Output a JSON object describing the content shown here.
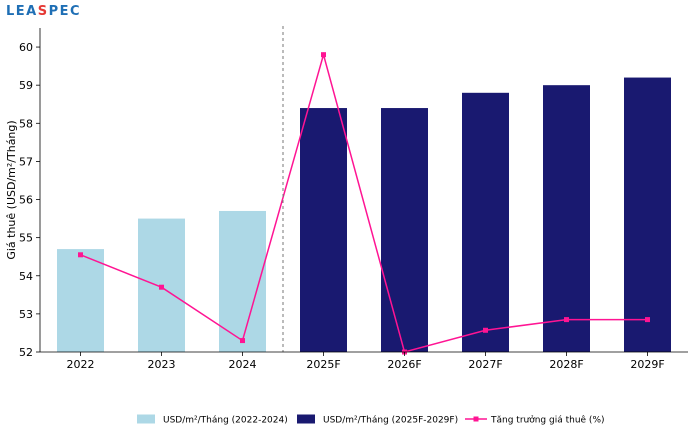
{
  "logo": {
    "text_left": "LEA",
    "text_s": "S",
    "text_right": "PEC"
  },
  "chart_data": {
    "type": "bar",
    "categories": [
      "2022",
      "2023",
      "2024",
      "2025F",
      "2026F",
      "2027F",
      "2028F",
      "2029F"
    ],
    "ylabel": "Giá thuê (USD/m²/Tháng)",
    "xlabel": "",
    "ylim": [
      52,
      60.5
    ],
    "yticks": [
      52,
      53,
      54,
      55,
      56,
      57,
      58,
      59,
      60
    ],
    "grid": false,
    "legend_position": "bottom",
    "series": [
      {
        "name": "USD/m²/Tháng (2022-2024)",
        "kind": "bar",
        "color": "#add8e6",
        "values": [
          54.7,
          55.5,
          55.7,
          null,
          null,
          null,
          null,
          null
        ]
      },
      {
        "name": "USD/m²/Tháng (2025F-2029F)",
        "kind": "bar",
        "color": "#191970",
        "values": [
          null,
          null,
          null,
          58.4,
          58.4,
          58.8,
          59.0,
          59.2
        ]
      },
      {
        "name": "Tăng trưởng giá thuê (%)",
        "kind": "line",
        "color": "#ff1493",
        "values": [
          54.55,
          53.7,
          52.3,
          59.8,
          52.0,
          52.57,
          52.85,
          52.85
        ]
      }
    ],
    "divider_after": "2024"
  }
}
